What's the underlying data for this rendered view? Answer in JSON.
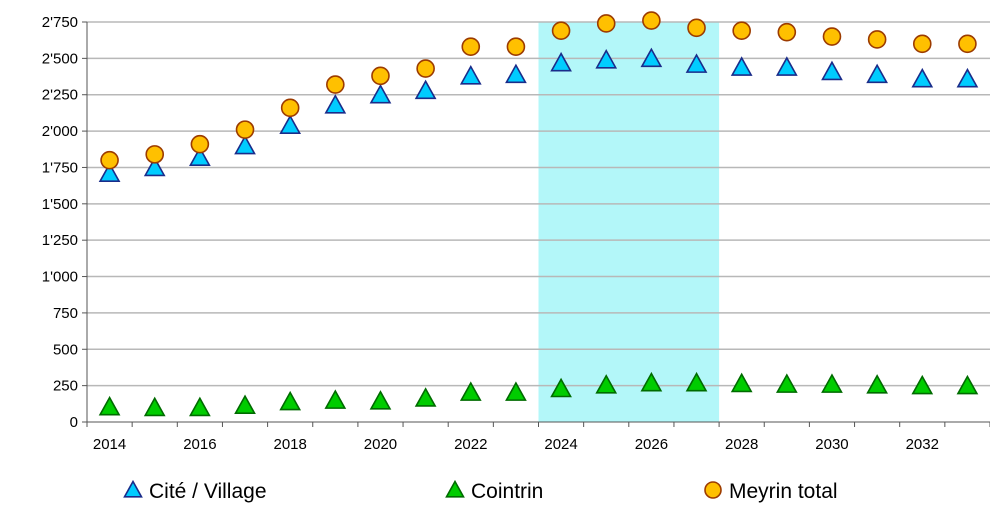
{
  "chart_data": {
    "type": "scatter",
    "title": "",
    "xlabel": "",
    "ylabel": "",
    "x": [
      2014,
      2015,
      2016,
      2017,
      2018,
      2019,
      2020,
      2021,
      2022,
      2023,
      2024,
      2025,
      2026,
      2027,
      2028,
      2029,
      2030,
      2031,
      2032,
      2033
    ],
    "series": [
      {
        "name": "Cité / Village",
        "marker": "triangle",
        "color": "#00ccff",
        "values": [
          1700,
          1740,
          1810,
          1890,
          2030,
          2170,
          2240,
          2270,
          2370,
          2380,
          2460,
          2480,
          2490,
          2450,
          2430,
          2430,
          2400,
          2380,
          2350,
          2350
        ]
      },
      {
        "name": "Cointrin",
        "marker": "triangle",
        "color": "#00cc00",
        "values": [
          95,
          90,
          90,
          105,
          130,
          140,
          135,
          155,
          195,
          195,
          220,
          245,
          260,
          260,
          255,
          250,
          250,
          245,
          240,
          240
        ]
      },
      {
        "name": "Meyrin total",
        "marker": "circle",
        "color": "#ffc000",
        "values": [
          1800,
          1840,
          1910,
          2010,
          2160,
          2320,
          2380,
          2430,
          2580,
          2580,
          2690,
          2740,
          2760,
          2710,
          2690,
          2680,
          2650,
          2630,
          2600,
          2600
        ]
      }
    ],
    "ylim": [
      0,
      2750
    ],
    "xlim": [
      2013.5,
      2033.5
    ],
    "y_ticks": [
      0,
      250,
      500,
      750,
      1000,
      1250,
      1500,
      1750,
      2000,
      2250,
      2500,
      2750
    ],
    "y_tick_labels": [
      "0",
      "250",
      "500",
      "750",
      "1'000",
      "1'250",
      "1'500",
      "1'750",
      "2'000",
      "2'250",
      "2'500",
      "2'750"
    ],
    "x_ticks": [
      2014,
      2016,
      2018,
      2020,
      2022,
      2024,
      2026,
      2028,
      2030,
      2032
    ],
    "x_tick_labels": [
      "2014",
      "2016",
      "2018",
      "2020",
      "2022",
      "2024",
      "2026",
      "2028",
      "2030",
      "2032"
    ],
    "highlight_band": {
      "from": 2023.5,
      "to": 2027.5,
      "color": "#b3f7f9"
    },
    "grid": "horizontal",
    "legend_position": "bottom"
  }
}
